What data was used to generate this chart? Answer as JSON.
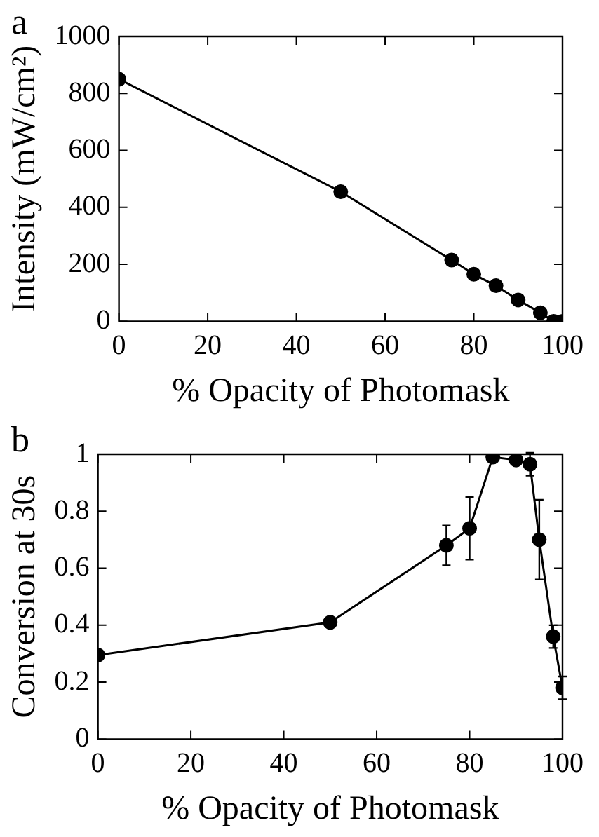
{
  "chart_data": [
    {
      "type": "line",
      "annotations": [
        "a"
      ],
      "xlabel": "% Opacity of Photomask",
      "ylabel": "Intensity (mW/cm²)",
      "x": [
        0,
        50,
        75,
        80,
        85,
        90,
        95,
        98,
        100
      ],
      "series": [
        {
          "color": "#000000",
          "values": [
            850,
            455,
            215,
            165,
            125,
            75,
            30,
            0,
            0
          ]
        }
      ],
      "xlim": [
        0,
        100
      ],
      "xticks": [
        0,
        20,
        40,
        60,
        80,
        100
      ],
      "ylim": [
        0,
        1000
      ],
      "yticks": [
        0,
        200,
        400,
        600,
        800,
        1000
      ],
      "marker": "circle",
      "line_style": "solid",
      "legend": false,
      "grid": false
    },
    {
      "type": "line",
      "annotations": [
        "b"
      ],
      "xlabel": "% Opacity of Photomask",
      "ylabel": "Conversion at 30s",
      "x": [
        0,
        50,
        75,
        80,
        85,
        90,
        93,
        95,
        98,
        100
      ],
      "series": [
        {
          "color": "#000000",
          "values": [
            0.295,
            0.41,
            0.68,
            0.74,
            0.99,
            0.98,
            0.965,
            0.7,
            0.36,
            0.18
          ],
          "errors": [
            null,
            null,
            0.07,
            0.11,
            null,
            null,
            0.04,
            0.14,
            0.04,
            0.04
          ]
        }
      ],
      "xlim": [
        0,
        100
      ],
      "xticks": [
        0,
        20,
        40,
        60,
        80,
        100
      ],
      "ylim": [
        0,
        1
      ],
      "yticks": [
        0,
        0.2,
        0.4,
        0.6,
        0.8,
        1
      ],
      "marker": "circle",
      "line_style": "solid",
      "legend": false,
      "grid": false
    }
  ]
}
